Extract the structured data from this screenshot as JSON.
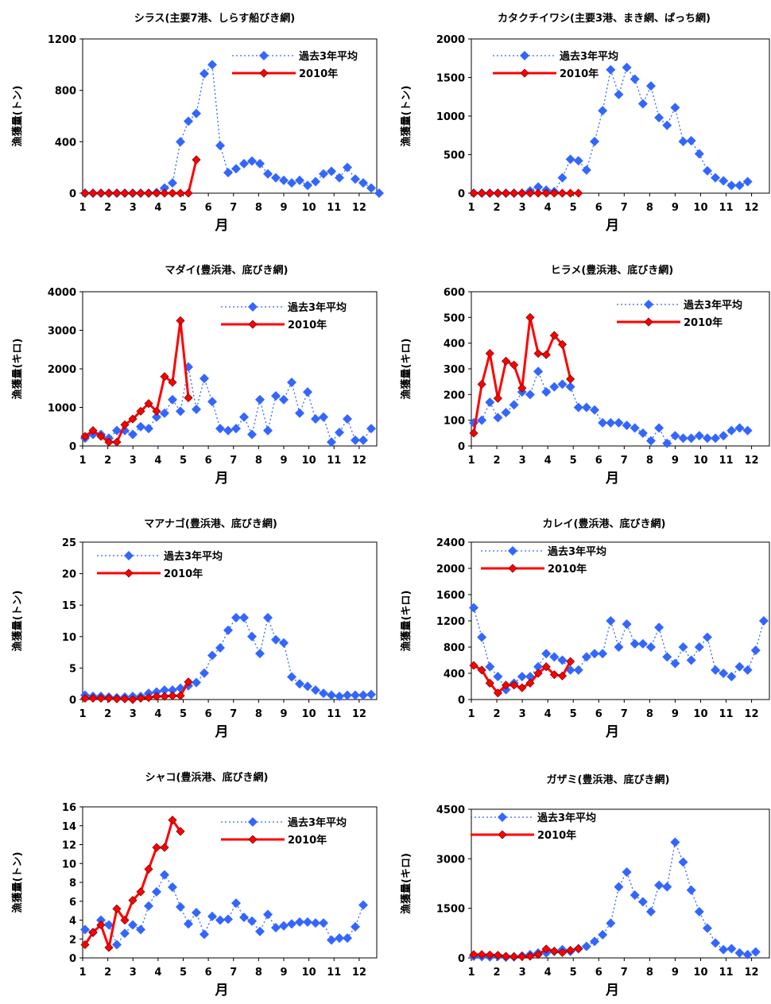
{
  "chart_data": [
    {
      "type": "line",
      "title": "シラス(主要7港、しらす船びき網)",
      "xlabel": "月",
      "ylabel": "漁獲量(トン)",
      "ylim": [
        0,
        1200
      ],
      "yticks": [
        "0",
        "400",
        "800",
        "1200"
      ],
      "xticks": [
        "1",
        "2",
        "3",
        "4",
        "5",
        "6",
        "7",
        "8",
        "9",
        "10",
        "11",
        "12"
      ],
      "series": [
        {
          "name": "過去3年平均",
          "color": "#3366ff",
          "style": "dotted",
          "values": [
            0,
            0,
            0,
            0,
            0,
            0,
            0,
            0,
            0,
            5,
            40,
            80,
            400,
            560,
            620,
            930,
            1000,
            370,
            160,
            190,
            230,
            250,
            230,
            150,
            120,
            100,
            80,
            100,
            60,
            90,
            150,
            170,
            120,
            200,
            110,
            80,
            40,
            0
          ]
        },
        {
          "name": "2010年",
          "color": "#ff0000",
          "style": "solid",
          "values": [
            0,
            0,
            0,
            0,
            0,
            0,
            0,
            0,
            0,
            0,
            0,
            0,
            0,
            0,
            260
          ]
        }
      ]
    },
    {
      "type": "line",
      "title": "カタクチイワシ(主要3港、まき網、ぱっち網)",
      "xlabel": "月",
      "ylabel": "漁獲量(トン)",
      "ylim": [
        0,
        2000
      ],
      "yticks": [
        "0",
        "500",
        "1000",
        "1500",
        "2000"
      ],
      "xticks": [
        "1",
        "2",
        "3",
        "4",
        "5",
        "6",
        "7",
        "8",
        "9",
        "10",
        "11",
        "12"
      ],
      "series": [
        {
          "name": "過去3年平均",
          "color": "#3366ff",
          "style": "dotted",
          "values": [
            0,
            0,
            0,
            0,
            0,
            0,
            0,
            30,
            80,
            40,
            20,
            200,
            440,
            420,
            300,
            670,
            1070,
            1600,
            1280,
            1630,
            1480,
            1160,
            1390,
            980,
            880,
            1110,
            670,
            680,
            510,
            290,
            200,
            160,
            100,
            100,
            150
          ]
        },
        {
          "name": "2010年",
          "color": "#ff0000",
          "style": "solid",
          "values": [
            0,
            0,
            0,
            0,
            0,
            0,
            0,
            0,
            0,
            0,
            0,
            0,
            0,
            0
          ]
        }
      ]
    },
    {
      "type": "line",
      "title": "マダイ(豊浜港、底びき網)",
      "xlabel": "月",
      "ylabel": "漁獲量(キロ)",
      "ylim": [
        0,
        4000
      ],
      "yticks": [
        "0",
        "1000",
        "2000",
        "3000",
        "4000"
      ],
      "xticks": [
        "1",
        "2",
        "3",
        "4",
        "5",
        "6",
        "7",
        "8",
        "9",
        "10",
        "11",
        "12"
      ],
      "series": [
        {
          "name": "過去3年平均",
          "color": "#3366ff",
          "style": "dotted",
          "values": [
            200,
            300,
            300,
            200,
            400,
            400,
            300,
            500,
            450,
            750,
            850,
            1200,
            900,
            2050,
            950,
            1750,
            1150,
            450,
            400,
            450,
            750,
            300,
            1200,
            400,
            1300,
            1200,
            1650,
            850,
            1400,
            700,
            750,
            100,
            350,
            700,
            150,
            150,
            450
          ]
        },
        {
          "name": "2010年",
          "color": "#ff0000",
          "style": "solid",
          "values": [
            250,
            400,
            250,
            100,
            100,
            550,
            700,
            900,
            1100,
            900,
            1800,
            1650,
            3250,
            1250
          ]
        }
      ]
    },
    {
      "type": "line",
      "title": "ヒラメ(豊浜港、底びき網)",
      "xlabel": "月",
      "ylabel": "漁獲量(キロ)",
      "ylim": [
        0,
        600
      ],
      "yticks": [
        "0",
        "100",
        "200",
        "300",
        "400",
        "500",
        "600"
      ],
      "xticks": [
        "1",
        "2",
        "3",
        "4",
        "5",
        "6",
        "7",
        "8",
        "9",
        "10",
        "11",
        "12"
      ],
      "series": [
        {
          "name": "過去3年平均",
          "color": "#3366ff",
          "style": "dotted",
          "values": [
            90,
            100,
            170,
            110,
            130,
            160,
            210,
            200,
            290,
            210,
            230,
            240,
            230,
            150,
            150,
            140,
            90,
            90,
            90,
            80,
            70,
            50,
            20,
            70,
            10,
            40,
            30,
            30,
            40,
            30,
            30,
            40,
            60,
            70,
            60
          ]
        },
        {
          "name": "2010年",
          "color": "#ff0000",
          "style": "solid",
          "values": [
            50,
            240,
            360,
            185,
            330,
            315,
            225,
            500,
            360,
            355,
            430,
            395,
            260
          ]
        }
      ]
    },
    {
      "type": "line",
      "title": "マアナゴ(豊浜港、底びき網)",
      "xlabel": "月",
      "ylabel": "漁獲量(トン)",
      "ylim": [
        0,
        25
      ],
      "yticks": [
        "0",
        "5",
        "10",
        "15",
        "20",
        "25"
      ],
      "xticks": [
        "1",
        "2",
        "3",
        "4",
        "5",
        "6",
        "7",
        "8",
        "9",
        "10",
        "11",
        "12"
      ],
      "series": [
        {
          "name": "過去3年平均",
          "color": "#3366ff",
          "style": "dotted",
          "values": [
            0.7,
            0.5,
            0.5,
            0.4,
            0.3,
            0.4,
            0.5,
            0.5,
            1.0,
            1.2,
            1.5,
            1.5,
            1.8,
            2.2,
            2.7,
            4.2,
            7.0,
            8.2,
            11.0,
            13.0,
            13.0,
            10.0,
            7.3,
            13.0,
            9.5,
            9.0,
            3.6,
            2.5,
            2.1,
            1.5,
            1.0,
            0.7,
            0.5,
            0.7,
            0.7,
            0.7,
            0.8
          ]
        },
        {
          "name": "2010年",
          "color": "#ff0000",
          "style": "solid",
          "values": [
            0.2,
            0.2,
            0.2,
            0.2,
            0.1,
            0.1,
            0,
            0.2,
            0.3,
            0.5,
            0.5,
            0.6,
            0.6,
            2.8
          ]
        }
      ]
    },
    {
      "type": "line",
      "title": "カレイ(豊浜港、底びき網)",
      "xlabel": "月",
      "ylabel": "漁獲量(キロ)",
      "ylim": [
        0,
        2400
      ],
      "yticks": [
        "0",
        "400",
        "800",
        "1200",
        "1600",
        "2000",
        "2400"
      ],
      "xticks": [
        "1",
        "2",
        "3",
        "4",
        "5",
        "6",
        "7",
        "8",
        "9",
        "10",
        "11",
        "12"
      ],
      "series": [
        {
          "name": "過去3年平均",
          "color": "#3366ff",
          "style": "dotted",
          "values": [
            1400,
            950,
            500,
            350,
            150,
            250,
            350,
            350,
            500,
            700,
            650,
            600,
            450,
            450,
            650,
            700,
            700,
            1200,
            800,
            1150,
            850,
            850,
            800,
            1100,
            650,
            550,
            800,
            600,
            800,
            950,
            450,
            400,
            350,
            500,
            450,
            750,
            1200
          ]
        },
        {
          "name": "2010年",
          "color": "#ff0000",
          "style": "solid",
          "values": [
            520,
            450,
            250,
            100,
            220,
            220,
            180,
            250,
            400,
            500,
            380,
            360,
            580
          ]
        }
      ]
    },
    {
      "type": "line",
      "title": "シャコ(豊浜港、底びき網)",
      "xlabel": "月",
      "ylabel": "漁獲量(トン)",
      "ylim": [
        0,
        16
      ],
      "yticks": [
        "0",
        "2",
        "4",
        "6",
        "8",
        "10",
        "12",
        "14",
        "16"
      ],
      "xticks": [
        "1",
        "2",
        "3",
        "4",
        "5",
        "6",
        "7",
        "8",
        "9",
        "10",
        "11",
        "12"
      ],
      "series": [
        {
          "name": "過去3年平均",
          "color": "#3366ff",
          "style": "dotted",
          "values": [
            3.0,
            2.7,
            4.0,
            3.5,
            1.4,
            2.6,
            3.5,
            3.0,
            5.5,
            7.0,
            8.8,
            7.5,
            5.4,
            3.6,
            4.8,
            2.5,
            4.4,
            4.0,
            4.1,
            5.8,
            4.3,
            3.9,
            2.8,
            4.6,
            3.2,
            3.4,
            3.6,
            3.8,
            3.8,
            3.7,
            3.7,
            1.9,
            2.1,
            2.1,
            3.3,
            5.6
          ]
        },
        {
          "name": "2010年",
          "color": "#ff0000",
          "style": "solid",
          "values": [
            1.4,
            2.7,
            3.5,
            1.1,
            5.2,
            4.0,
            6.1,
            7.0,
            9.4,
            11.7,
            11.7,
            14.6,
            13.4
          ]
        }
      ]
    },
    {
      "type": "line",
      "title": "ガザミ(豊浜港、底びき網)",
      "xlabel": "月",
      "ylabel": "漁獲量(キロ)",
      "ylim": [
        0,
        4500
      ],
      "yticks": [
        "0",
        "1500",
        "3000",
        "4500"
      ],
      "xticks": [
        "1",
        "2",
        "3",
        "4",
        "5",
        "6",
        "7",
        "8",
        "9",
        "10",
        "11",
        "12"
      ],
      "series": [
        {
          "name": "過去3年平均",
          "color": "#3366ff",
          "style": "dotted",
          "values": [
            50,
            40,
            30,
            50,
            20,
            30,
            60,
            100,
            150,
            150,
            200,
            250,
            200,
            280,
            350,
            500,
            700,
            1050,
            2150,
            2600,
            1900,
            1700,
            1400,
            2200,
            2150,
            3500,
            2900,
            2050,
            1400,
            900,
            450,
            250,
            280,
            150,
            100,
            180
          ]
        },
        {
          "name": "2010年",
          "color": "#ff0000",
          "style": "solid",
          "values": [
            100,
            100,
            90,
            80,
            50,
            40,
            40,
            50,
            100,
            270,
            200,
            160,
            230,
            280
          ]
        }
      ]
    }
  ]
}
